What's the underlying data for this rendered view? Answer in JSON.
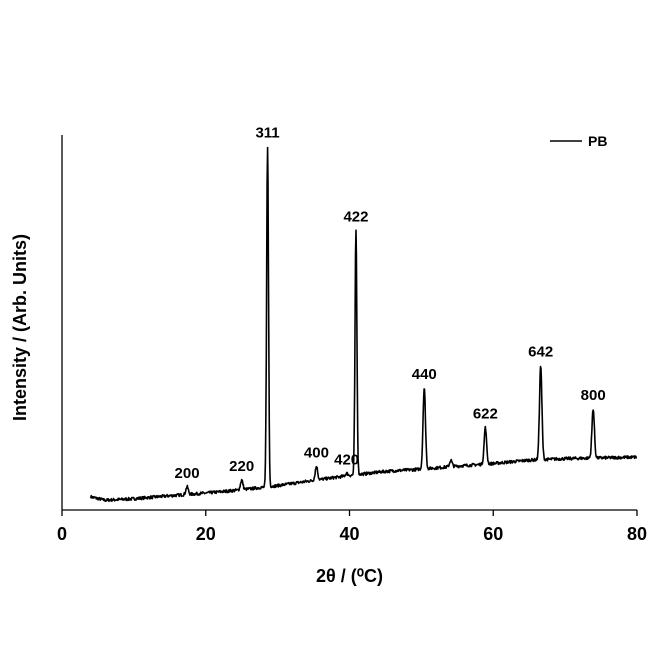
{
  "chart_data": {
    "type": "line",
    "xlabel": "2θ / (⁰C)",
    "ylabel": "Intensity / (Arb. Units)",
    "xlim": [
      0,
      80
    ],
    "ylim": [
      0,
      100
    ],
    "xticks": [
      0,
      20,
      40,
      60,
      80
    ],
    "grid": false,
    "y_tick_labels_shown": false,
    "legend": {
      "position": "top-right",
      "entries": [
        "PB"
      ]
    },
    "series": [
      {
        "name": "PB",
        "color": "#000000",
        "baseline": [
          [
            4,
            3.5
          ],
          [
            6,
            2.6
          ],
          [
            10,
            3.0
          ],
          [
            15,
            3.8
          ],
          [
            20,
            4.5
          ],
          [
            25,
            5.4
          ],
          [
            30,
            6.5
          ],
          [
            35,
            7.9
          ],
          [
            40,
            9.2
          ],
          [
            45,
            10.3
          ],
          [
            50,
            10.9
          ],
          [
            55,
            11.7
          ],
          [
            60,
            12.4
          ],
          [
            65,
            13.3
          ],
          [
            70,
            13.7
          ],
          [
            75,
            13.9
          ],
          [
            80,
            14.1
          ]
        ],
        "peaks": [
          {
            "x": 17.4,
            "height": 6.2,
            "label": "200"
          },
          {
            "x": 25.0,
            "height": 8.0,
            "label": "220"
          },
          {
            "x": 28.6,
            "height": 97.0,
            "label": "311"
          },
          {
            "x": 35.4,
            "height": 11.6,
            "label": "400"
          },
          {
            "x": 39.6,
            "height": 9.8,
            "label": "420"
          },
          {
            "x": 40.9,
            "height": 74.5,
            "label": "422"
          },
          {
            "x": 50.4,
            "height": 32.5,
            "label": "440"
          },
          {
            "x": 54.1,
            "height": 13.3,
            "label": ""
          },
          {
            "x": 58.9,
            "height": 22.0,
            "label": "622"
          },
          {
            "x": 66.6,
            "height": 38.5,
            "label": "642"
          },
          {
            "x": 73.9,
            "height": 27.0,
            "label": "800"
          }
        ]
      }
    ]
  }
}
